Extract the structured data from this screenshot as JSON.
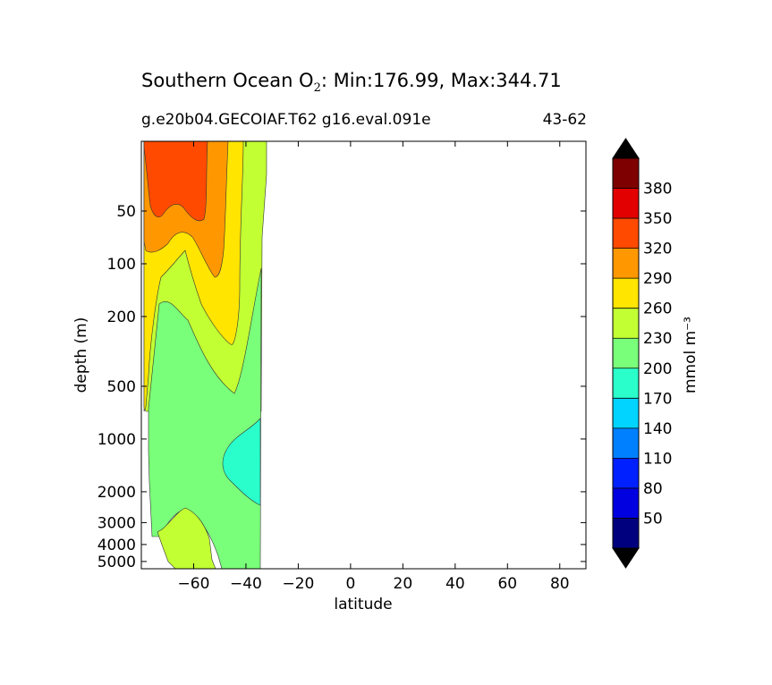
{
  "title": {
    "main_prefix": "Southern Ocean O",
    "main_sub": "2",
    "main_suffix": ": Min:176.99, Max:344.71"
  },
  "subtitle": {
    "case": "g.e20b04.GECOIAF.T62 g16.eval.091e",
    "years": "43-62"
  },
  "chart_data": {
    "type": "contour",
    "title": "Southern Ocean O2: Min:176.99, Max:344.71",
    "subtitle": "g.e20b04.GECOIAF.T62 g16.eval.091e",
    "period": "43-62",
    "xlabel": "latitude",
    "ylabel": "depth (m)",
    "xlim": [
      -80,
      90
    ],
    "ylim": [
      5500,
      20
    ],
    "yscale": "log",
    "xticks": [
      -60,
      -40,
      -20,
      0,
      20,
      40,
      60,
      80
    ],
    "xtick_labels": [
      "−60",
      "−40",
      "−20",
      "0",
      "20",
      "40",
      "60",
      "80"
    ],
    "yticks": [
      50,
      100,
      200,
      500,
      1000,
      2000,
      3000,
      4000,
      5000
    ],
    "ytick_labels": [
      "50",
      "100",
      "200",
      "500",
      "1000",
      "2000",
      "3000",
      "4000",
      "5000"
    ],
    "data_extent_lat": [
      -80,
      -33
    ],
    "min": 176.99,
    "max": 344.71,
    "colorbar": {
      "label": "mmol m⁻³",
      "levels": [
        20,
        50,
        80,
        110,
        140,
        170,
        200,
        230,
        260,
        290,
        320,
        350,
        380,
        410
      ],
      "tick_labels": [
        "50",
        "80",
        "110",
        "140",
        "170",
        "200",
        "230",
        "260",
        "290",
        "320",
        "350",
        "380"
      ],
      "colors": [
        "#00007f",
        "#0000e0",
        "#0020ff",
        "#0080ff",
        "#00d4ff",
        "#2affcc",
        "#7aff7a",
        "#c2ff33",
        "#ffe500",
        "#ff9800",
        "#ff4a00",
        "#e30000",
        "#7f0000"
      ],
      "extend": "both",
      "extend_color": "#000000"
    },
    "regions": [
      {
        "range": [
          320,
          350
        ],
        "lat": [
          -80,
          -55
        ],
        "depth": [
          20,
          110
        ]
      },
      {
        "range": [
          290,
          320
        ],
        "lat": [
          -80,
          -48
        ],
        "depth": [
          20,
          240
        ]
      },
      {
        "range": [
          260,
          290
        ],
        "lat": [
          -80,
          -45
        ],
        "depth": [
          20,
          420
        ]
      },
      {
        "range": [
          230,
          260
        ],
        "lat": [
          -80,
          -33
        ],
        "depth": [
          20,
          800
        ]
      },
      {
        "range": [
          200,
          230
        ],
        "lat": [
          -78,
          -33
        ],
        "depth": [
          250,
          5500
        ]
      },
      {
        "range": [
          170,
          200
        ],
        "lat": [
          -50,
          -34
        ],
        "depth": [
          1300,
          2800
        ]
      },
      {
        "range": [
          230,
          260
        ],
        "lat": [
          -73,
          -53
        ],
        "depth": [
          3600,
          5500
        ]
      }
    ]
  }
}
